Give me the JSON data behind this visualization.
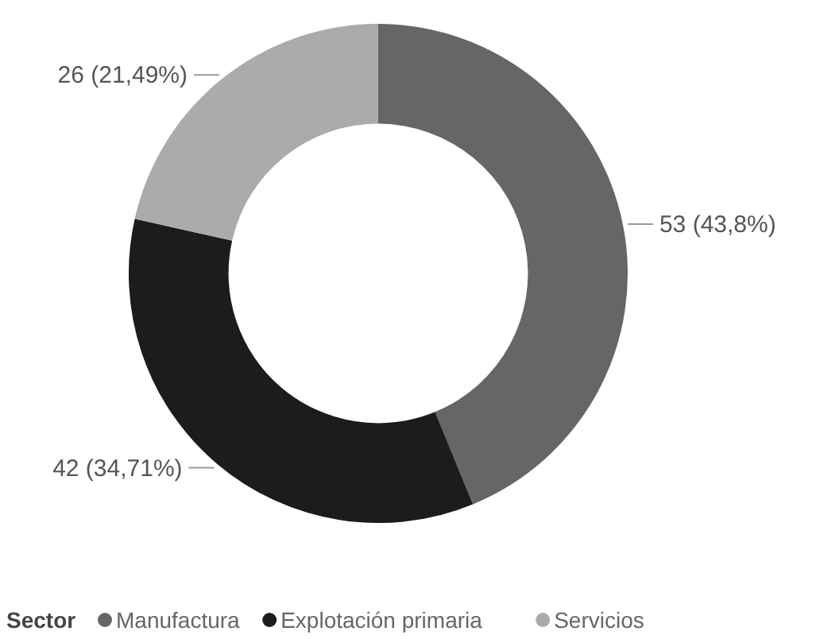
{
  "chart_data": {
    "type": "donut",
    "legend_title": "Sector",
    "categories": [
      "Manufactura",
      "Explotación primaria",
      "Servicios"
    ],
    "values": [
      53,
      42,
      26
    ],
    "colors": [
      "#666666",
      "#1c1c1c",
      "#ababab"
    ],
    "value_labels": [
      "53 (43,8%)",
      "42 (34,71%)",
      "26 (21,49%)"
    ],
    "legend": "bottom left"
  }
}
